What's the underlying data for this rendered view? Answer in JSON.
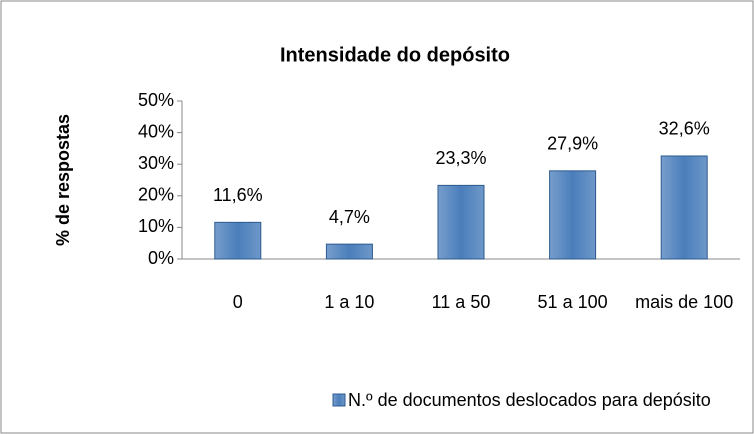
{
  "chart_data": {
    "type": "bar",
    "title": "Intensidade do depósito",
    "y_label": "% de respostas",
    "categories": [
      "0",
      "1 a 10",
      "11 a 50",
      "51 a 100",
      "mais de 100"
    ],
    "series": [
      {
        "name": "N.º de documentos deslocados para depósito",
        "color": "#4a7ebb",
        "values": [
          11.6,
          4.7,
          23.3,
          27.9,
          32.6
        ],
        "value_labels": [
          "11,6%",
          "4,7%",
          "23,3%",
          "27,9%",
          "32,6%"
        ]
      }
    ],
    "ylim": [
      0,
      50
    ],
    "yticks": [
      {
        "value": 0,
        "label": "0%"
      },
      {
        "value": 10,
        "label": "10%"
      },
      {
        "value": 20,
        "label": "20%"
      },
      {
        "value": 30,
        "label": "30%"
      },
      {
        "value": 40,
        "label": "40%"
      },
      {
        "value": 50,
        "label": "50%"
      }
    ],
    "grid": false,
    "legend": "bottom"
  }
}
